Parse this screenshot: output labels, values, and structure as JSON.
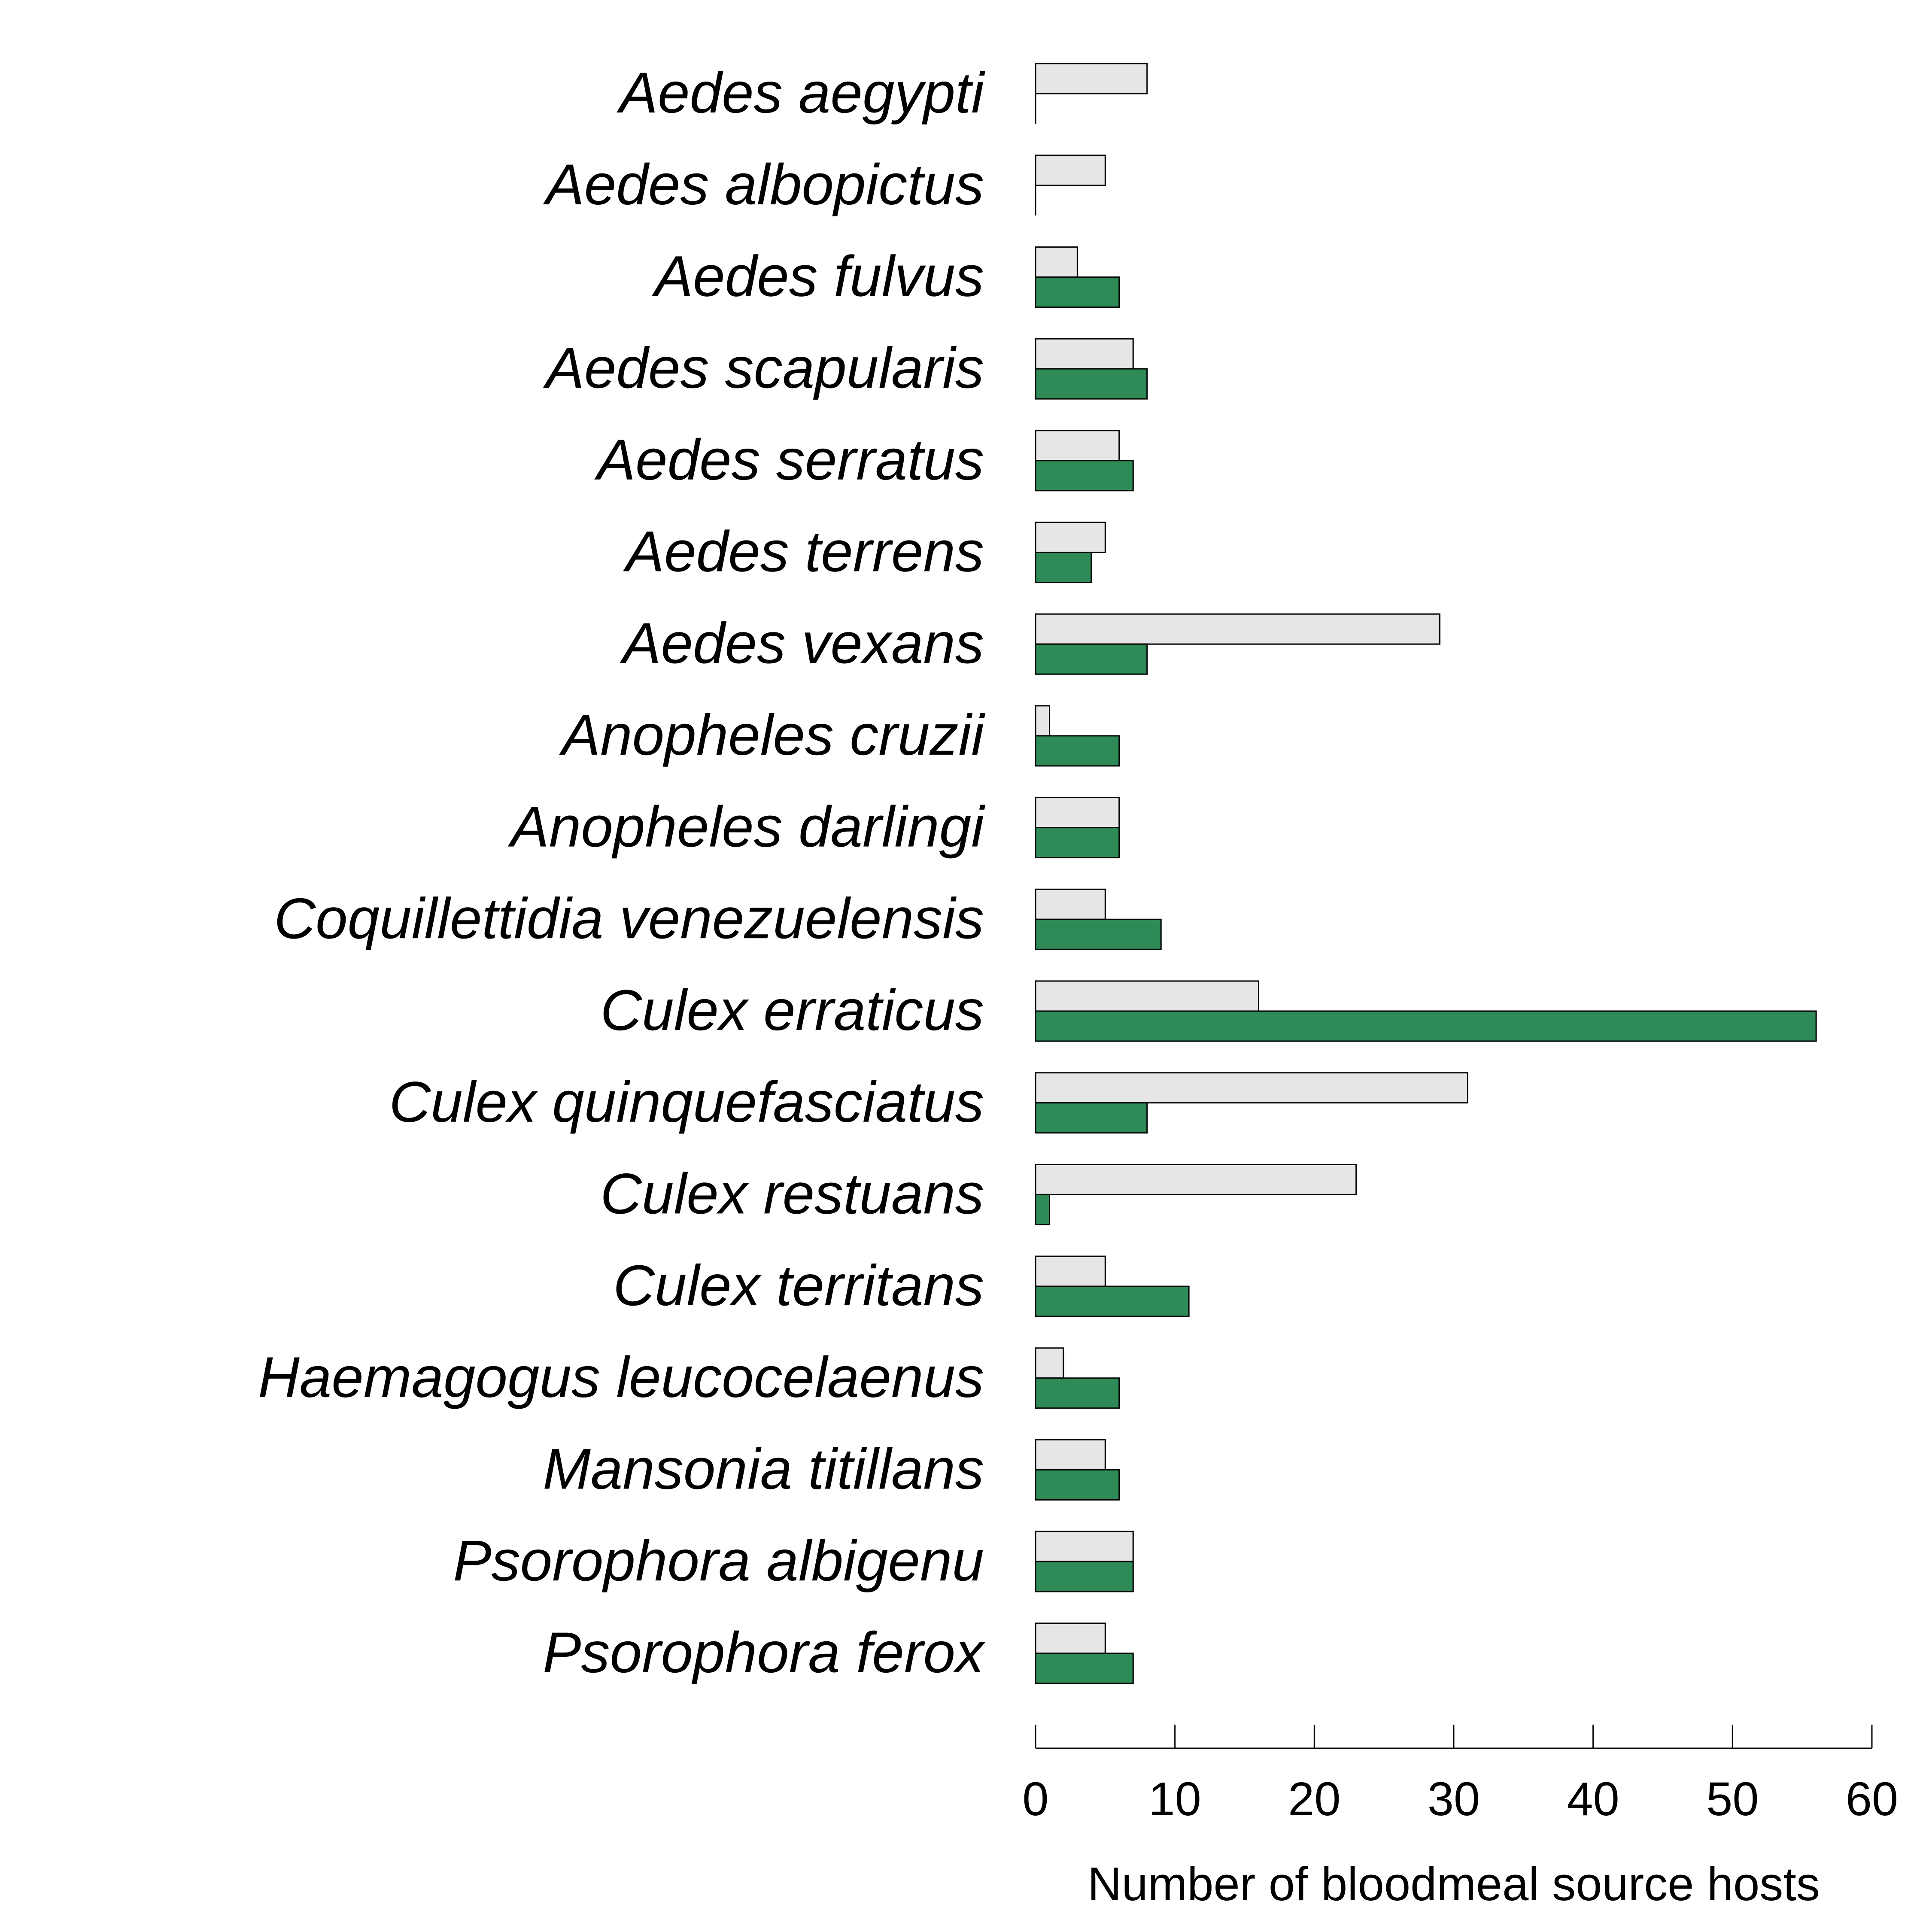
{
  "chart_data": {
    "type": "bar",
    "orientation": "horizontal",
    "categories": [
      "Aedes aegypti",
      "Aedes albopictus",
      "Aedes fulvus",
      "Aedes scapularis",
      "Aedes serratus",
      "Aedes terrens",
      "Aedes vexans",
      "Anopheles cruzii",
      "Anopheles darlingi",
      "Coquillettidia venezuelensis",
      "Culex erraticus",
      "Culex quinquefasciatus",
      "Culex restuans",
      "Culex territans",
      "Haemagogus leucocelaenus",
      "Mansonia titillans",
      "Psorophora albigenu",
      "Psorophora ferox"
    ],
    "series": [
      {
        "color": "#e6e6e6",
        "values": [
          8,
          5,
          3,
          7,
          6,
          5,
          29,
          1,
          6,
          5,
          16,
          31,
          23,
          5,
          2,
          5,
          7,
          5
        ]
      },
      {
        "color": "#2e8b57",
        "values": [
          0,
          0,
          6,
          8,
          7,
          4,
          8,
          6,
          6,
          9,
          56,
          8,
          1,
          11,
          6,
          6,
          7,
          7
        ]
      }
    ],
    "xlabel": "Number of bloodmeal source hosts",
    "xlim": [
      0,
      60
    ],
    "xticks": [
      0,
      10,
      20,
      30,
      40,
      50,
      60
    ],
    "grid": false,
    "legend": "none"
  }
}
